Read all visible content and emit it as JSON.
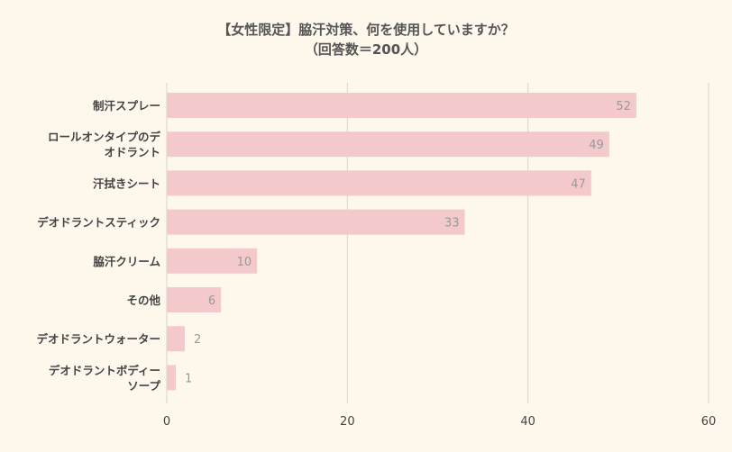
{
  "chart_data": {
    "type": "bar",
    "orientation": "horizontal",
    "title_lines": [
      "【女性限定】脇汗対策、何を使用していますか？",
      "（回答数＝200人）"
    ],
    "categories": [
      [
        "制汗スプレー"
      ],
      [
        "ロールオンタイプのデ",
        "オドラント"
      ],
      [
        "汗拭きシート"
      ],
      [
        "デオドラントスティック"
      ],
      [
        "脇汗クリーム"
      ],
      [
        "その他"
      ],
      [
        "デオドラントウォーター"
      ],
      [
        "デオドラントボディー",
        "ソープ"
      ]
    ],
    "values": [
      52,
      49,
      47,
      33,
      10,
      6,
      2,
      1
    ],
    "value_labels": [
      "52",
      "49",
      "47",
      "33",
      "10",
      "6",
      "2",
      "1"
    ],
    "xlim": [
      0,
      60
    ],
    "x_ticks": [
      "0",
      "20",
      "40",
      "60"
    ],
    "x_tick_values": [
      0,
      20,
      40,
      60
    ],
    "grid": true,
    "colors": {
      "bar": "#f4c9cc",
      "background": "#fdf7ec",
      "grid": "#d9d4cc",
      "label_text": "#444444",
      "value_text": "#999999",
      "title_text": "#555555"
    }
  }
}
